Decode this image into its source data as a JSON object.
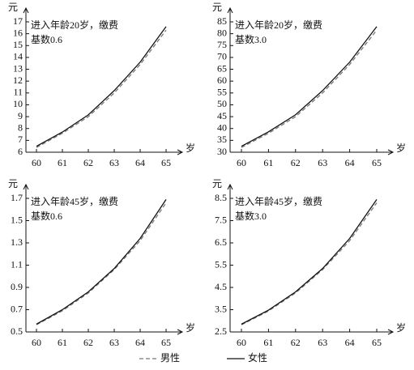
{
  "legend": [
    {
      "name": "男性",
      "color": "#777777",
      "dash": true
    },
    {
      "name": "女性",
      "color": "#111111",
      "dash": false
    }
  ],
  "chart_data": [
    {
      "type": "line",
      "annotation": [
        "进入年龄20岁，缴费",
        "基数0.6"
      ],
      "y_label": "元",
      "x_label": "岁",
      "categories": [
        "60",
        "61",
        "62",
        "63",
        "64",
        "65"
      ],
      "ylim": [
        6,
        17
      ],
      "yticks": [
        6,
        7,
        8,
        9,
        10,
        11,
        12,
        13,
        14,
        15,
        16,
        17
      ],
      "series": [
        {
          "color": "#777777",
          "dash": true,
          "values": [
            6.4,
            7.6,
            9.0,
            11.0,
            13.4,
            16.3
          ]
        },
        {
          "color": "#111111",
          "dash": false,
          "values": [
            6.5,
            7.7,
            9.15,
            11.2,
            13.6,
            16.6
          ]
        }
      ]
    },
    {
      "type": "line",
      "annotation": [
        "进入年龄20岁，缴费",
        "基数3.0"
      ],
      "y_label": "元",
      "x_label": "岁",
      "categories": [
        "60",
        "61",
        "62",
        "63",
        "64",
        "65"
      ],
      "ylim": [
        30,
        85
      ],
      "yticks": [
        30,
        35,
        40,
        45,
        50,
        55,
        60,
        65,
        70,
        75,
        80,
        85
      ],
      "series": [
        {
          "color": "#777777",
          "dash": true,
          "values": [
            32,
            38,
            45,
            55,
            67,
            81.5
          ]
        },
        {
          "color": "#111111",
          "dash": false,
          "values": [
            32.5,
            38.6,
            45.8,
            56,
            68,
            83
          ]
        }
      ]
    },
    {
      "type": "line",
      "annotation": [
        "进入年龄45岁，缴费",
        "基数0.6"
      ],
      "y_label": "元",
      "x_label": "岁",
      "categories": [
        "60",
        "61",
        "62",
        "63",
        "64",
        "65"
      ],
      "ylim": [
        0.5,
        1.7
      ],
      "yticks": [
        0.5,
        0.7,
        0.9,
        1.1,
        1.3,
        1.5,
        1.7
      ],
      "series": [
        {
          "color": "#777777",
          "dash": true,
          "values": [
            0.565,
            0.69,
            0.85,
            1.06,
            1.32,
            1.66
          ]
        },
        {
          "color": "#111111",
          "dash": false,
          "values": [
            0.57,
            0.7,
            0.86,
            1.07,
            1.34,
            1.69
          ]
        }
      ]
    },
    {
      "type": "line",
      "annotation": [
        "进入年龄45岁，缴费",
        "基数3.0"
      ],
      "y_label": "元",
      "x_label": "岁",
      "categories": [
        "60",
        "61",
        "62",
        "63",
        "64",
        "65"
      ],
      "ylim": [
        2.5,
        8.5
      ],
      "yticks": [
        2.5,
        3.5,
        4.5,
        5.5,
        6.5,
        7.5,
        8.5
      ],
      "series": [
        {
          "color": "#777777",
          "dash": true,
          "values": [
            2.82,
            3.44,
            4.25,
            5.3,
            6.6,
            8.3
          ]
        },
        {
          "color": "#111111",
          "dash": false,
          "values": [
            2.85,
            3.48,
            4.3,
            5.35,
            6.7,
            8.45
          ]
        }
      ]
    }
  ]
}
